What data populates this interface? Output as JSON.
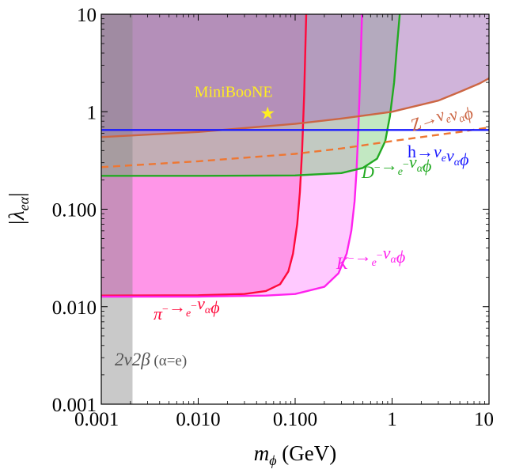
{
  "chart_data": {
    "type": "line",
    "title": "",
    "xlabel_main": "m",
    "xlabel_sub": "ϕ",
    "xlabel_unit": " (GeV)",
    "ylabel": "|λ",
    "ylabel_sub": "eα",
    "ylabel_close": "|",
    "xscale": "log",
    "yscale": "log",
    "xlim": [
      0.001,
      10
    ],
    "ylim": [
      0.001,
      10
    ],
    "grid": false,
    "x_ticks": [
      {
        "value": 0.001,
        "label": "0.001"
      },
      {
        "value": 0.01,
        "label": "0.010"
      },
      {
        "value": 0.1,
        "label": "0.100"
      },
      {
        "value": 1,
        "label": "1"
      },
      {
        "value": 10,
        "label": "10"
      }
    ],
    "y_ticks": [
      {
        "value": 0.001,
        "label": "0.001"
      },
      {
        "value": 0.01,
        "label": "0.010"
      },
      {
        "value": 0.1,
        "label": "0.100"
      },
      {
        "value": 1,
        "label": "1"
      },
      {
        "value": 10,
        "label": "10"
      }
    ],
    "series": [
      {
        "name": "π⁻→e⁻ν_αϕ",
        "label_parts": [
          "π",
          "⁻",
          "→",
          "e",
          "⁻",
          "ν",
          "α",
          "ϕ"
        ],
        "color": "#ff0a3c",
        "fill": "#ff66bb",
        "fill_opacity": 0.6,
        "points": [
          [
            0.001,
            0.013
          ],
          [
            0.01,
            0.0131
          ],
          [
            0.03,
            0.0135
          ],
          [
            0.05,
            0.0145
          ],
          [
            0.07,
            0.017
          ],
          [
            0.085,
            0.023
          ],
          [
            0.095,
            0.035
          ],
          [
            0.105,
            0.07
          ],
          [
            0.112,
            0.15
          ],
          [
            0.118,
            0.4
          ],
          [
            0.124,
            1.5
          ],
          [
            0.13,
            10
          ]
        ]
      },
      {
        "name": "K⁻→e⁻ν_αϕ",
        "label_parts": [
          "K",
          "⁻",
          "→",
          "e",
          "⁻",
          "ν",
          "α",
          "ϕ"
        ],
        "color": "#ff22ee",
        "fill": "#ff88ff",
        "fill_opacity": 0.45,
        "points": [
          [
            0.001,
            0.0127
          ],
          [
            0.01,
            0.0127
          ],
          [
            0.05,
            0.013
          ],
          [
            0.1,
            0.0135
          ],
          [
            0.2,
            0.016
          ],
          [
            0.28,
            0.022
          ],
          [
            0.34,
            0.035
          ],
          [
            0.38,
            0.06
          ],
          [
            0.41,
            0.12
          ],
          [
            0.43,
            0.25
          ],
          [
            0.45,
            0.7
          ],
          [
            0.47,
            2.5
          ],
          [
            0.49,
            10
          ]
        ]
      },
      {
        "name": "D⁻→e⁻ν_αϕ",
        "label_parts": [
          "D",
          "⁻",
          "→",
          "e",
          "⁻",
          "ν",
          "α",
          "ϕ"
        ],
        "color": "#22aa22",
        "fill": "#77cc77",
        "fill_opacity": 0.45,
        "points": [
          [
            0.001,
            0.22
          ],
          [
            0.01,
            0.22
          ],
          [
            0.1,
            0.222
          ],
          [
            0.3,
            0.235
          ],
          [
            0.5,
            0.265
          ],
          [
            0.7,
            0.33
          ],
          [
            0.85,
            0.5
          ],
          [
            0.95,
            0.9
          ],
          [
            1.05,
            2
          ],
          [
            1.12,
            4.5
          ],
          [
            1.2,
            10
          ]
        ]
      },
      {
        "name": "Z→ν_eν_αϕ",
        "label_parts": [
          "Z",
          "→",
          "ν",
          "e",
          "ν",
          "α",
          "ϕ"
        ],
        "color": "#cc6644",
        "fill": "#aa77bb",
        "fill_opacity": 0.55,
        "points": [
          [
            0.001,
            0.55
          ],
          [
            0.01,
            0.62
          ],
          [
            0.1,
            0.75
          ],
          [
            0.3,
            0.85
          ],
          [
            1,
            1.0
          ],
          [
            3,
            1.3
          ],
          [
            5,
            1.6
          ],
          [
            8,
            1.95
          ],
          [
            10,
            2.2
          ]
        ]
      },
      {
        "name": "Z→ν_eν_αϕ (dashed)",
        "label_parts": [],
        "color": "#ee7733",
        "dashed": true,
        "points": [
          [
            0.001,
            0.27
          ],
          [
            0.01,
            0.31
          ],
          [
            0.1,
            0.37
          ],
          [
            0.3,
            0.42
          ],
          [
            1,
            0.5
          ],
          [
            3,
            0.58
          ],
          [
            5,
            0.62
          ],
          [
            10,
            0.69
          ]
        ]
      },
      {
        "name": "h→ν_eν_αϕ",
        "label_parts": [
          "h",
          "→",
          "ν",
          "e",
          "ν",
          "α",
          "ϕ"
        ],
        "color": "#1a1aff",
        "points": [
          [
            0.001,
            0.65
          ],
          [
            10,
            0.65
          ]
        ]
      }
    ],
    "excluded_band": {
      "x_range": [
        0.001,
        0.0021
      ],
      "color": "#888888",
      "opacity": 0.45
    },
    "annotations": [
      {
        "id": "miniboone",
        "text": "MiniBooNE",
        "color": "#ffee22",
        "point": [
          0.052,
          0.98
        ],
        "marker": "★"
      },
      {
        "id": "dbd",
        "text_main": "2ν2β",
        "text_paren": " (α=e)",
        "color": "#555555"
      }
    ],
    "legend": "none"
  }
}
